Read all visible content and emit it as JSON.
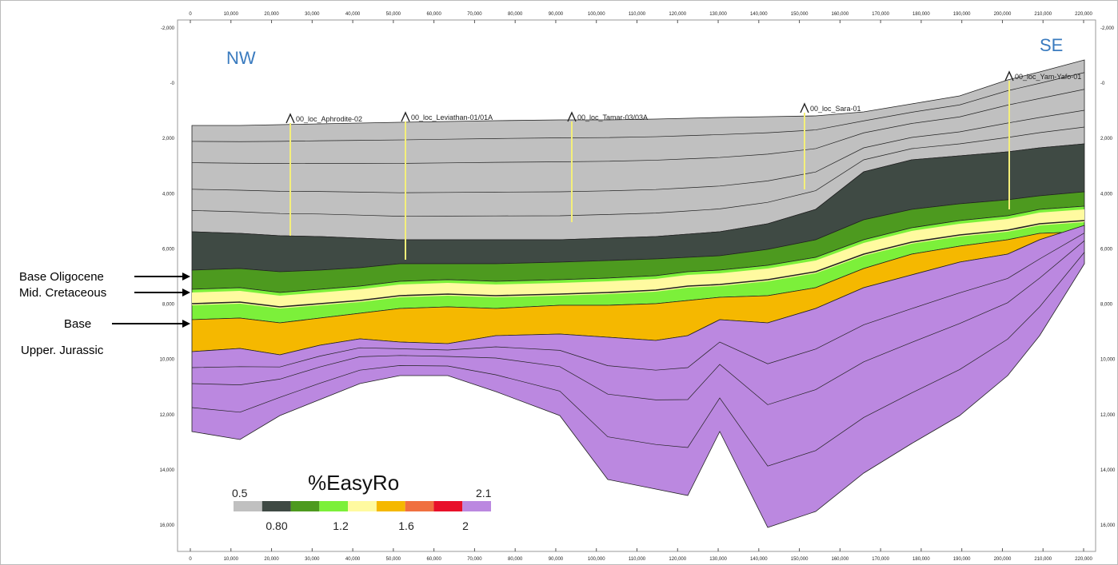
{
  "direction_labels": {
    "left": "NW",
    "right": "SE"
  },
  "x_axis": {
    "ticks": [
      "0",
      "10,000",
      "20,000",
      "30,000",
      "40,000",
      "50,000",
      "60,000",
      "70,000",
      "80,000",
      "90,000",
      "100,000",
      "110,000",
      "120,000",
      "130,000",
      "140,000",
      "150,000",
      "160,000",
      "170,000",
      "180,000",
      "190,000",
      "200,000",
      "210,000",
      "220,000"
    ]
  },
  "y_axis": {
    "ticks": [
      "-2,000",
      "-0",
      "2,000",
      "4,000",
      "6,000",
      "8,000",
      "10,000",
      "12,000",
      "14,000",
      "16,000"
    ]
  },
  "wells": [
    {
      "label": "00_loc_Aphrodite-02"
    },
    {
      "label": "00_loc_Leviathan-01/01A"
    },
    {
      "label": "00_loc_Tamar-03/03A"
    },
    {
      "label": "00_loc_Sara-01"
    },
    {
      "label": "00_loc_Yam-Yafo-01"
    }
  ],
  "horizons": [
    {
      "lines": [
        "Base Oligocene"
      ]
    },
    {
      "lines": [
        "Mid. Cretaceous"
      ]
    },
    {
      "lines": [
        "Base",
        "Upper. Jurassic"
      ]
    }
  ],
  "legend": {
    "title": "%EasyRo",
    "min": "0.5",
    "max": "2.1",
    "labels": [
      "0.80",
      "1.2",
      "1.6",
      "2"
    ],
    "colors": [
      "#c0c0c0",
      "#3f4a44",
      "#4d9a1f",
      "#7cf03a",
      "#fffaa0",
      "#f5b800",
      "#f07040",
      "#e8102a",
      "#bb88e0"
    ]
  }
}
